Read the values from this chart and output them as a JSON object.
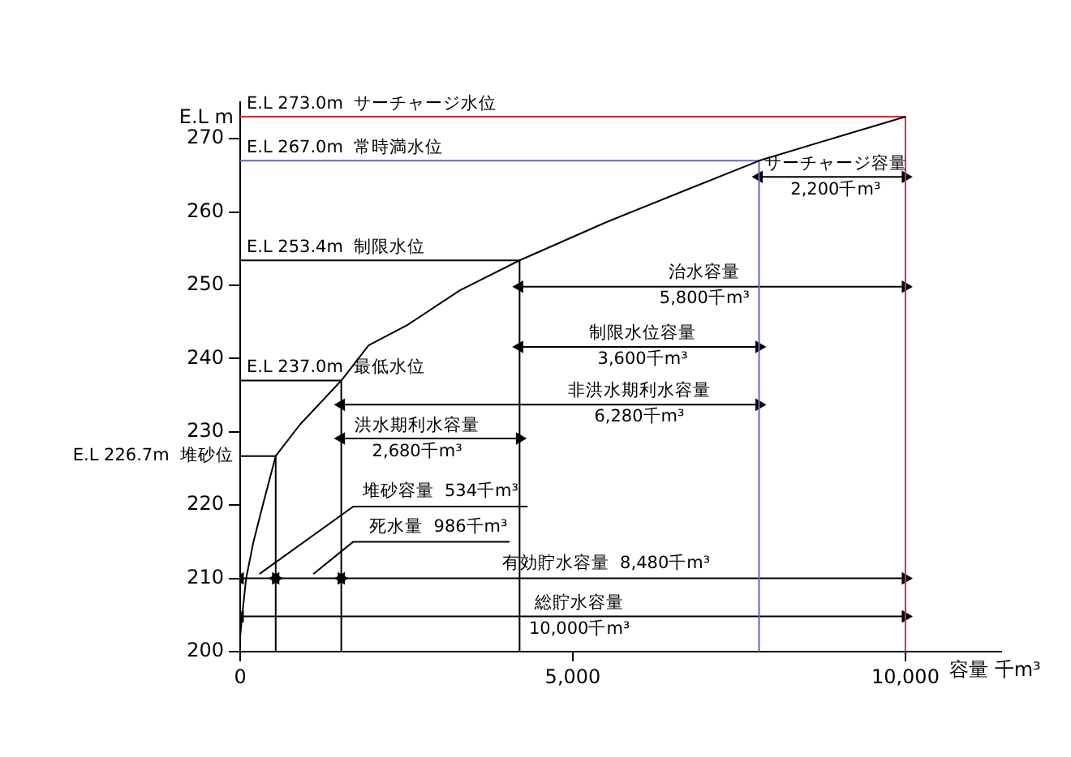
{
  "chart_data": {
    "type": "line",
    "xlabel": "容量 千m³",
    "ylabel": "E.L m",
    "xlim": [
      0,
      11440
    ],
    "ylim": [
      200,
      275
    ],
    "xticks": [
      0,
      {
        "value": 5000,
        "label": "5,000"
      },
      {
        "value": 10000,
        "label": "10,000"
      }
    ],
    "yticks": [
      200,
      210,
      220,
      230,
      240,
      250,
      260,
      270
    ],
    "series": [
      {
        "type": "line",
        "color": "#000000",
        "marker": "none",
        "x": [
          0,
          30,
          90,
          200,
          340,
          534,
          900,
          1520,
          1930,
          2500,
          3300,
          4200,
          5500,
          6700,
          7800,
          9000,
          10000
        ],
        "values": [
          202,
          205,
          210,
          215,
          220,
          226.7,
          231,
          237,
          241.8,
          244.5,
          249.3,
          253.4,
          258.6,
          263,
          267,
          270.3,
          273
        ]
      },
      {
        "type": "line",
        "color": "#d03040",
        "marker": "none",
        "x": [
          0,
          10000,
          10000
        ],
        "values": [
          273,
          273,
          200
        ]
      },
      {
        "type": "line",
        "color": "#6666cc",
        "marker": "none",
        "x": [
          0,
          7800,
          7800
        ],
        "values": [
          267,
          267,
          200
        ]
      },
      {
        "type": "line",
        "color": "#000000",
        "marker": "none",
        "x": [
          0,
          4200,
          4200
        ],
        "values": [
          253.4,
          253.4,
          200
        ]
      },
      {
        "type": "line",
        "color": "#000000",
        "marker": "none",
        "x": [
          0,
          1520,
          1520
        ],
        "values": [
          237,
          237,
          200
        ]
      },
      {
        "type": "line",
        "color": "#000000",
        "marker": "none",
        "x": [
          0,
          534,
          534
        ],
        "values": [
          226.7,
          226.7,
          200
        ]
      },
      {
        "type": "line",
        "color": "#000000",
        "marker": "triangle",
        "x": [
          7800,
          10000
        ],
        "values": [
          264.8,
          264.8
        ]
      },
      {
        "type": "line",
        "color": "#000000",
        "marker": "triangle",
        "x": [
          4200,
          10000
        ],
        "values": [
          249.8,
          249.8
        ]
      },
      {
        "type": "line",
        "color": "#000000",
        "marker": "triangle",
        "x": [
          4200,
          7800
        ],
        "values": [
          241.6,
          241.6
        ]
      },
      {
        "type": "line",
        "color": "#000000",
        "marker": "triangle",
        "x": [
          1520,
          7800
        ],
        "values": [
          233.7,
          233.7
        ]
      },
      {
        "type": "line",
        "color": "#000000",
        "marker": "triangle",
        "x": [
          1520,
          4200
        ],
        "values": [
          229.1,
          229.1
        ]
      },
      {
        "type": "line",
        "color": "#000000",
        "marker": "triangle",
        "x": [
          0,
          534
        ],
        "values": [
          210,
          210
        ]
      },
      {
        "type": "line",
        "color": "#000000",
        "marker": "triangle",
        "x": [
          534,
          1520
        ],
        "values": [
          210,
          210
        ]
      },
      {
        "type": "line",
        "color": "#000000",
        "marker": "triangle",
        "x": [
          1520,
          5500,
          10000
        ],
        "values": [
          210,
          210,
          210
        ]
      },
      {
        "type": "line",
        "color": "#000000",
        "marker": "triangle",
        "x": [
          0,
          10000
        ],
        "values": [
          204.8,
          204.8
        ]
      },
      {
        "type": "line",
        "color": "#000000",
        "marker": "none",
        "x": [
          4320,
          3010,
          1700,
          290
        ],
        "values": [
          219.8,
          219.8,
          219.8,
          210.6
        ]
      },
      {
        "type": "line",
        "color": "#000000",
        "marker": "none",
        "x": [
          4050,
          2980,
          1700,
          1100
        ],
        "values": [
          215,
          215,
          215,
          210.6
        ]
      }
    ],
    "annotations": [
      {
        "text": "E.L 273.0m  サーチャージ水位",
        "y": 273
      },
      {
        "text": "E.L 267.0m  常時満水位",
        "y": 267
      },
      {
        "text": "E.L 253.4m  制限水位",
        "y": 253.4
      },
      {
        "text": "E.L 237.0m  最低水位",
        "y": 237
      },
      {
        "text": "E.L 226.7m  堆砂位",
        "x": 0,
        "y": 226.7
      },
      {
        "text": "サーチャージ容量\n2,200千m³",
        "x": 8950,
        "y": 264.8
      },
      {
        "text": "治水容量\n5,800千m³",
        "x": 6980,
        "y": 249.9
      },
      {
        "text": "制限水位容量\n3,600千m³",
        "x": 6050,
        "y": 241.6
      },
      {
        "text": "非洪水期利水容量\n6,280千m³",
        "x": 6000,
        "y": 233.8
      },
      {
        "text": "洪水期利水容量\n2,680千m³",
        "x": 2660,
        "y": 229
      },
      {
        "text": "堆砂容量  534千m³",
        "x": 3010,
        "y": 219.8
      },
      {
        "text": "死水量  986千m³",
        "x": 2980,
        "y": 215
      },
      {
        "text": "有効貯水容量  8,480千m³",
        "x": 5500,
        "y": 210
      },
      {
        "text": "総貯水容量\n10,000千m³",
        "x": 5100,
        "y": 204.8
      }
    ]
  }
}
